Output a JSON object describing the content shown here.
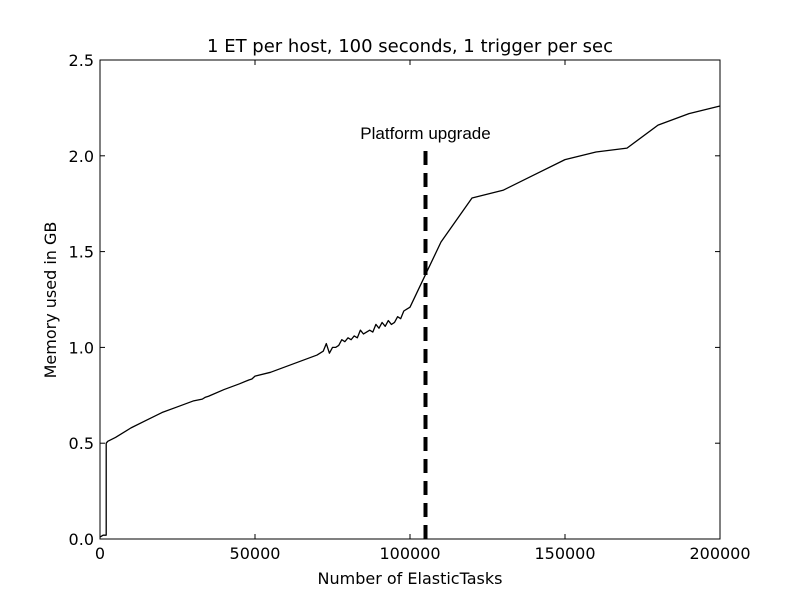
{
  "colors": {
    "line": "#000000",
    "background": "#ffffff",
    "frame": "#000000"
  },
  "chart_data": {
    "type": "line",
    "title": "1 ET per host, 100 seconds, 1 trigger per sec",
    "xlabel": "Number of ElasticTasks",
    "ylabel": "Memory used in GB",
    "xlim": [
      0,
      200000
    ],
    "ylim": [
      0.0,
      2.5
    ],
    "x_ticks": [
      0,
      50000,
      100000,
      150000,
      200000
    ],
    "x_tick_labels": [
      "0",
      "50000",
      "100000",
      "150000",
      "200000"
    ],
    "y_ticks": [
      0.0,
      0.5,
      1.0,
      1.5,
      2.0,
      2.5
    ],
    "y_tick_labels": [
      "0.0",
      "0.5",
      "1.0",
      "1.5",
      "2.0",
      "2.5"
    ],
    "grid": false,
    "series": [
      {
        "x": [
          0,
          1000,
          2000,
          2000,
          2500,
          5000,
          10000,
          15000,
          20000,
          25000,
          30000,
          33000,
          34000,
          35000,
          40000,
          45000,
          48000,
          49000,
          50000,
          55000,
          60000,
          65000,
          70000,
          72000,
          73000,
          74000,
          75000,
          76000,
          77000,
          78000,
          79000,
          80000,
          81000,
          82000,
          83000,
          84000,
          85000,
          86000,
          87000,
          88000,
          89000,
          90000,
          91000,
          92000,
          93000,
          94000,
          95000,
          96000,
          97000,
          98000,
          99000,
          100000,
          105000,
          110000,
          120000,
          130000,
          140000,
          150000,
          160000,
          170000,
          180000,
          190000,
          200000
        ],
        "y": [
          0.01,
          0.02,
          0.02,
          0.5,
          0.51,
          0.53,
          0.58,
          0.62,
          0.66,
          0.69,
          0.72,
          0.73,
          0.74,
          0.745,
          0.78,
          0.81,
          0.83,
          0.835,
          0.85,
          0.87,
          0.9,
          0.93,
          0.96,
          0.98,
          1.02,
          0.97,
          1.0,
          1.0,
          1.01,
          1.04,
          1.03,
          1.05,
          1.04,
          1.06,
          1.05,
          1.09,
          1.07,
          1.08,
          1.09,
          1.08,
          1.12,
          1.1,
          1.13,
          1.11,
          1.14,
          1.12,
          1.13,
          1.16,
          1.15,
          1.19,
          1.2,
          1.21,
          1.38,
          1.55,
          1.78,
          1.82,
          1.9,
          1.98,
          2.02,
          2.04,
          2.16,
          2.22,
          2.26
        ]
      }
    ],
    "vlines": [
      {
        "x": 105000,
        "y_range": [
          0.0,
          2.05
        ],
        "style": "dashed"
      }
    ],
    "annotations": [
      {
        "text": "Platform upgrade",
        "x": 105000,
        "y": 2.12
      }
    ]
  }
}
